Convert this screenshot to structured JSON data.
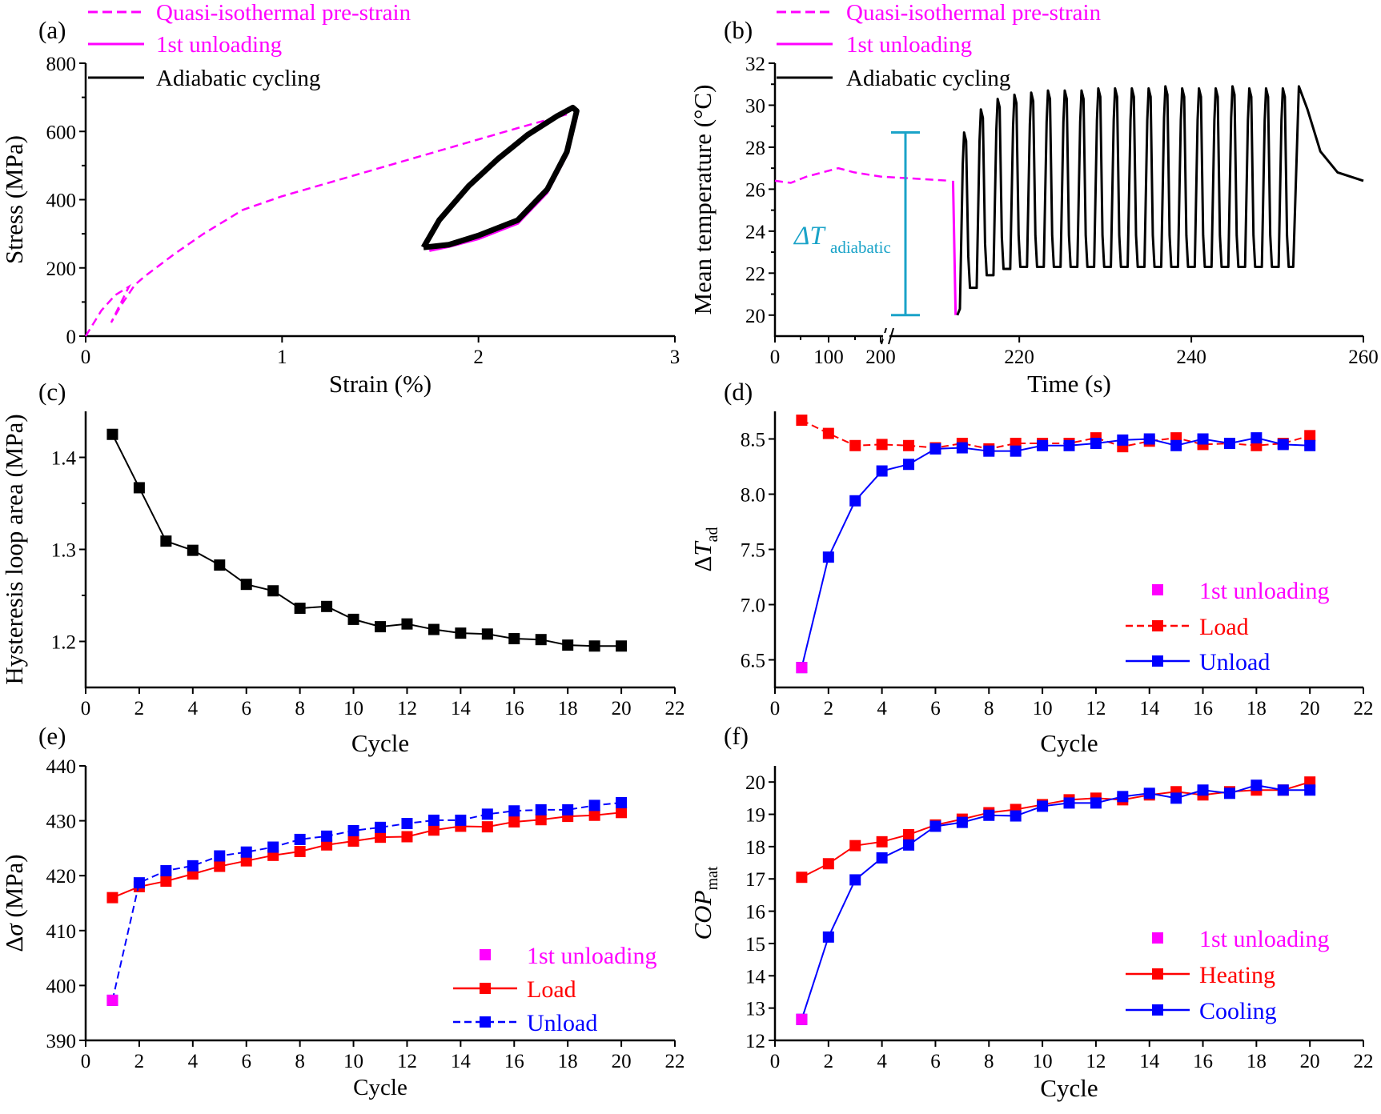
{
  "colors": {
    "magenta": "#ff00ff",
    "red": "#ff0000",
    "blue": "#0000ff",
    "black": "#000000",
    "cyan": "#1aa3c8"
  },
  "chart_data": [
    {
      "panel": "(a)",
      "type": "line",
      "xlabel": "Strain (%)",
      "ylabel": "Stress (MPa)",
      "xlim": [
        0,
        3
      ],
      "ylim": [
        0,
        800
      ],
      "xticks": [
        "0",
        "1",
        "2",
        "3"
      ],
      "yticks": [
        "0",
        "200",
        "400",
        "600",
        "800"
      ],
      "legend": [
        "Quasi-isothermal pre-strain",
        "1st unloading",
        "Adiabatic cycling"
      ],
      "series": [
        {
          "name": "Quasi-isothermal pre-strain",
          "style": "dashed",
          "color": "#ff00ff",
          "x": [
            0,
            0.08,
            0.15,
            0.22,
            0.13,
            0.18,
            0.25,
            0.3,
            0.45,
            0.6,
            0.8,
            1.0,
            1.3,
            1.6,
            1.9,
            2.2,
            2.45
          ],
          "y": [
            0,
            75,
            120,
            145,
            40,
            90,
            150,
            175,
            240,
            300,
            370,
            410,
            460,
            510,
            560,
            610,
            650
          ]
        },
        {
          "name": "1st unloading",
          "style": "solid",
          "color": "#ff00ff",
          "x": [
            2.5,
            2.45,
            2.35,
            2.2,
            2.0,
            1.85,
            1.75
          ],
          "y": [
            640,
            530,
            420,
            330,
            285,
            262,
            250
          ]
        },
        {
          "name": "Adiabatic cycling",
          "style": "solid",
          "color": "#000000",
          "x_loading": [
            1.72,
            1.8,
            1.95,
            2.1,
            2.25,
            2.4,
            2.48,
            2.5
          ],
          "y_loading": [
            260,
            340,
            440,
            520,
            590,
            645,
            670,
            660
          ],
          "x_unloading": [
            2.5,
            2.45,
            2.35,
            2.2,
            2.0,
            1.85,
            1.72
          ],
          "y_unloading": [
            660,
            540,
            430,
            340,
            295,
            268,
            260
          ]
        }
      ]
    },
    {
      "panel": "(b)",
      "type": "line",
      "xlabel": "Time (s)",
      "ylabel": "Mean temperature (°C)",
      "ylim": [
        19,
        32
      ],
      "xticks": [
        "0",
        "100",
        "200",
        "220",
        "240",
        "260"
      ],
      "yticks": [
        "20",
        "22",
        "24",
        "26",
        "28",
        "30",
        "32"
      ],
      "legend": [
        "Quasi-isothermal pre-strain",
        "1st unloading",
        "Adiabatic cycling"
      ],
      "annotation": "ΔT",
      "annotation_sub": "adiabatic",
      "series": [
        {
          "name": "Quasi-isothermal pre-strain",
          "color": "#ff00ff",
          "x": [
            0,
            30,
            60,
            120,
            150,
            200,
            212
          ],
          "y": [
            26.4,
            26.3,
            26.6,
            27.0,
            26.8,
            26.6,
            26.4
          ]
        },
        {
          "name": "1st unloading",
          "color": "#ff00ff",
          "x": [
            214,
            214
          ],
          "y": [
            26.4,
            20.0
          ]
        },
        {
          "name": "Adiabatic cycling",
          "color": "#000000",
          "cycles": 20,
          "t_start": 215,
          "t_end_cycles": 252,
          "t_end": 260,
          "peaks": [
            28.7,
            29.8,
            30.3,
            30.5,
            30.6,
            30.7,
            30.7,
            30.7,
            30.8,
            30.8,
            30.8,
            30.8,
            30.9,
            30.8,
            30.8,
            30.8,
            30.9,
            30.8,
            30.8,
            30.8
          ],
          "troughs": [
            21.3,
            21.9,
            22.2,
            22.3,
            22.3,
            22.3,
            22.3,
            22.3,
            22.3,
            22.3,
            22.3,
            22.3,
            22.3,
            22.3,
            22.3,
            22.3,
            22.3,
            22.3,
            22.3,
            22.3
          ],
          "final": 26.4
        }
      ]
    },
    {
      "panel": "(c)",
      "type": "line",
      "xlabel": "Cycle",
      "ylabel": "Hysteresis loop area (MPa)",
      "xlim": [
        0,
        22
      ],
      "ylim": [
        1.15,
        1.45
      ],
      "xticks": [
        "0",
        "2",
        "4",
        "6",
        "8",
        "10",
        "12",
        "14",
        "16",
        "18",
        "20",
        "22"
      ],
      "yticks": [
        "1.2",
        "1.3",
        "1.4"
      ],
      "series": [
        {
          "color": "#000000",
          "x": [
            1,
            2,
            3,
            4,
            5,
            6,
            7,
            8,
            9,
            10,
            11,
            12,
            13,
            14,
            15,
            16,
            17,
            18,
            19,
            20
          ],
          "y": [
            1.425,
            1.367,
            1.309,
            1.299,
            1.283,
            1.262,
            1.255,
            1.236,
            1.238,
            1.224,
            1.216,
            1.219,
            1.213,
            1.209,
            1.208,
            1.203,
            1.202,
            1.196,
            1.195,
            1.195
          ]
        }
      ]
    },
    {
      "panel": "(d)",
      "type": "line",
      "xlabel": "Cycle",
      "ylabel": "ΔT",
      "ylabel_sub": "ad",
      "xlim": [
        0,
        22
      ],
      "ylim": [
        6.25,
        8.75
      ],
      "xticks": [
        "0",
        "2",
        "4",
        "6",
        "8",
        "10",
        "12",
        "14",
        "16",
        "18",
        "20",
        "22"
      ],
      "yticks": [
        "6.5",
        "7.0",
        "7.5",
        "8.0",
        "8.5"
      ],
      "legend": [
        "1st unloading",
        "Load",
        "Unload"
      ],
      "series": [
        {
          "name": "1st unloading",
          "color": "#ff00ff",
          "x": [
            1
          ],
          "y": [
            6.43
          ]
        },
        {
          "name": "Load",
          "color": "#ff0000",
          "x": [
            1,
            2,
            3,
            4,
            5,
            6,
            7,
            8,
            9,
            10,
            11,
            12,
            13,
            14,
            15,
            16,
            17,
            18,
            19,
            20
          ],
          "y": [
            8.67,
            8.55,
            8.44,
            8.45,
            8.44,
            8.42,
            8.46,
            8.41,
            8.46,
            8.46,
            8.46,
            8.51,
            8.43,
            8.48,
            8.51,
            8.45,
            8.46,
            8.44,
            8.46,
            8.53
          ]
        },
        {
          "name": "Unload",
          "color": "#0000ff",
          "x": [
            1,
            2,
            3,
            4,
            5,
            6,
            7,
            8,
            9,
            10,
            11,
            12,
            13,
            14,
            15,
            16,
            17,
            18,
            19,
            20
          ],
          "y": [
            6.43,
            7.43,
            7.94,
            8.21,
            8.27,
            8.41,
            8.42,
            8.39,
            8.39,
            8.44,
            8.44,
            8.46,
            8.49,
            8.5,
            8.44,
            8.5,
            8.46,
            8.51,
            8.45,
            8.44
          ]
        }
      ]
    },
    {
      "panel": "(e)",
      "type": "line",
      "xlabel": "Cycle",
      "ylabel": "Δσ (MPa)",
      "xlim": [
        0,
        22
      ],
      "ylim": [
        390,
        440
      ],
      "xticks": [
        "0",
        "2",
        "4",
        "6",
        "8",
        "10",
        "12",
        "14",
        "16",
        "18",
        "20",
        "22"
      ],
      "yticks": [
        "390",
        "400",
        "410",
        "420",
        "430",
        "440"
      ],
      "legend": [
        "1st unloading",
        "Load",
        "Unload"
      ],
      "series": [
        {
          "name": "1st unloading",
          "color": "#ff00ff",
          "x": [
            1
          ],
          "y": [
            397.3
          ]
        },
        {
          "name": "Load",
          "color": "#ff0000",
          "x": [
            1,
            2,
            3,
            4,
            5,
            6,
            7,
            8,
            9,
            10,
            11,
            12,
            13,
            14,
            15,
            16,
            17,
            18,
            19,
            20
          ],
          "y": [
            416.0,
            418.0,
            419.0,
            420.3,
            421.7,
            422.7,
            423.7,
            424.4,
            425.6,
            426.3,
            427.0,
            427.1,
            428.3,
            429.0,
            428.9,
            429.8,
            430.2,
            430.8,
            431.0,
            431.5
          ]
        },
        {
          "name": "Unload",
          "color": "#0000ff",
          "x": [
            1,
            2,
            3,
            4,
            5,
            6,
            7,
            8,
            9,
            10,
            11,
            12,
            13,
            14,
            15,
            16,
            17,
            18,
            19,
            20
          ],
          "y": [
            397.3,
            418.7,
            420.9,
            421.8,
            423.6,
            424.3,
            425.2,
            426.6,
            427.2,
            428.2,
            428.8,
            429.5,
            430.1,
            430.1,
            431.2,
            431.8,
            432.0,
            432.0,
            432.8,
            433.3
          ]
        }
      ]
    },
    {
      "panel": "(f)",
      "type": "line",
      "xlabel": "Cycle",
      "ylabel": "COP",
      "ylabel_sub": "mat",
      "xlim": [
        0,
        22
      ],
      "ylim": [
        12,
        20.5
      ],
      "xticks": [
        "0",
        "2",
        "4",
        "6",
        "8",
        "10",
        "12",
        "14",
        "16",
        "18",
        "20",
        "22"
      ],
      "yticks": [
        "12",
        "13",
        "14",
        "15",
        "16",
        "17",
        "18",
        "19",
        "20"
      ],
      "legend": [
        "1st unloading",
        "Heating",
        "Cooling"
      ],
      "series": [
        {
          "name": "1st unloading",
          "color": "#ff00ff",
          "x": [
            1
          ],
          "y": [
            12.65
          ]
        },
        {
          "name": "Heating",
          "color": "#ff0000",
          "x": [
            1,
            2,
            3,
            4,
            5,
            6,
            7,
            8,
            9,
            10,
            11,
            12,
            13,
            14,
            15,
            16,
            17,
            18,
            19,
            20
          ],
          "y": [
            17.05,
            17.47,
            18.03,
            18.15,
            18.37,
            18.67,
            18.85,
            19.05,
            19.15,
            19.3,
            19.45,
            19.5,
            19.45,
            19.6,
            19.7,
            19.6,
            19.7,
            19.75,
            19.75,
            20.0
          ]
        },
        {
          "name": "Cooling",
          "color": "#0000ff",
          "x": [
            1,
            2,
            3,
            4,
            5,
            6,
            7,
            8,
            9,
            10,
            11,
            12,
            13,
            14,
            15,
            16,
            17,
            18,
            19,
            20
          ],
          "y": [
            12.65,
            15.2,
            16.97,
            17.65,
            18.05,
            18.63,
            18.75,
            18.97,
            18.95,
            19.25,
            19.35,
            19.35,
            19.55,
            19.65,
            19.5,
            19.75,
            19.65,
            19.9,
            19.75,
            19.75
          ]
        }
      ]
    }
  ]
}
